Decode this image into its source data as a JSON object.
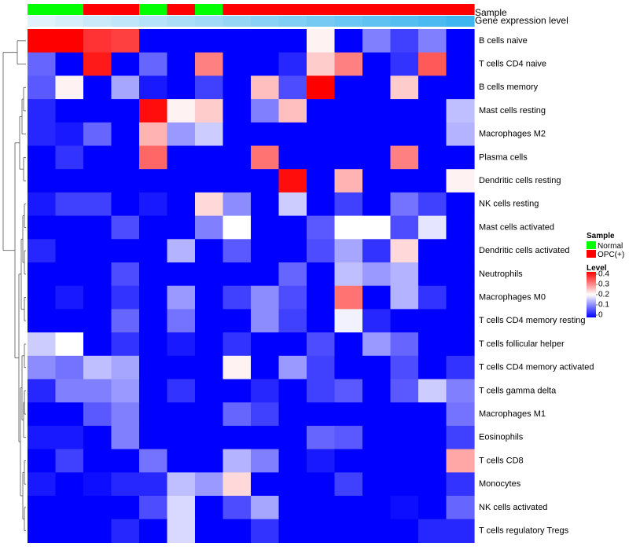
{
  "chart_data": {
    "type": "heatmap",
    "title": "",
    "annotations": [
      {
        "name": "Sample",
        "label": "Sample"
      },
      {
        "name": "Gene expression level",
        "label": "Gene expression level"
      }
    ],
    "rows": [
      "B cells naive",
      "T cells CD4 naive",
      "B cells memory",
      "Mast cells resting",
      "Macrophages M2",
      "Plasma cells",
      "Dendritic cells resting",
      "NK cells resting",
      "Mast cells activated",
      "Dendritic cells activated",
      "Neutrophils",
      "Macrophages M0",
      "T cells CD4 memory resting",
      "T cells follicular helper",
      "T cells CD4 memory activated",
      "T cells gamma delta",
      "Macrophages M1",
      "Eosinophils",
      "T cells CD8",
      "Monocytes",
      "NK cells activated",
      "T cells regulatory  Tregs"
    ],
    "sample_groups": [
      "Normal",
      "Normal",
      "OPC(+)",
      "OPC(+)",
      "Normal",
      "OPC(+)",
      "Normal",
      "OPC(+)",
      "OPC(+)",
      "OPC(+)",
      "OPC(+)",
      "OPC(+)",
      "OPC(+)",
      "OPC(+)",
      "OPC(+)",
      "OPC(+)"
    ],
    "expression_levels": [
      0.02,
      0.04,
      0.06,
      0.08,
      0.1,
      0.12,
      0.14,
      0.16,
      0.18,
      0.2,
      0.22,
      0.24,
      0.26,
      0.28,
      0.3,
      0.32
    ],
    "values": [
      [
        0.4,
        0.4,
        0.36,
        0.35,
        0.0,
        0.0,
        0.0,
        0.0,
        0.0,
        0.0,
        0.21,
        0.0,
        0.1,
        0.05,
        0.1,
        0.0
      ],
      [
        0.08,
        0.0,
        0.38,
        0.0,
        0.08,
        0.0,
        0.3,
        0.0,
        0.0,
        0.03,
        0.24,
        0.3,
        0.0,
        0.04,
        0.33,
        0.0
      ],
      [
        0.07,
        0.21,
        0.0,
        0.13,
        0.02,
        0.0,
        0.05,
        0.0,
        0.25,
        0.06,
        0.4,
        0.0,
        0.0,
        0.24,
        0.0,
        0.0
      ],
      [
        0.03,
        0.0,
        0.0,
        0.0,
        0.39,
        0.21,
        0.24,
        0.0,
        0.1,
        0.25,
        0.0,
        0.0,
        0.0,
        0.0,
        0.0,
        0.15
      ],
      [
        0.03,
        0.02,
        0.08,
        0.0,
        0.26,
        0.12,
        0.16,
        0.0,
        0.0,
        0.0,
        0.0,
        0.0,
        0.0,
        0.0,
        0.0,
        0.14
      ],
      [
        0.0,
        0.04,
        0.0,
        0.0,
        0.32,
        0.0,
        0.0,
        0.0,
        0.31,
        0.0,
        0.0,
        0.0,
        0.0,
        0.3,
        0.0,
        0.0
      ],
      [
        0.0,
        0.0,
        0.0,
        0.0,
        0.0,
        0.0,
        0.0,
        0.0,
        0.0,
        0.39,
        0.0,
        0.26,
        0.0,
        0.0,
        0.0,
        0.21
      ],
      [
        0.02,
        0.05,
        0.05,
        0.0,
        0.02,
        0.0,
        0.23,
        0.11,
        0.0,
        0.16,
        0.0,
        0.05,
        0.0,
        0.09,
        0.05,
        0.0
      ],
      [
        0.0,
        0.0,
        0.0,
        0.06,
        0.0,
        0.0,
        0.1,
        0.2,
        0.0,
        0.0,
        0.07,
        0.2,
        0.2,
        0.06,
        0.18,
        0.0
      ],
      [
        0.03,
        0.0,
        0.0,
        0.0,
        0.0,
        0.14,
        0.0,
        0.07,
        0.0,
        0.0,
        0.06,
        0.13,
        0.04,
        0.23,
        0.0,
        0.0
      ],
      [
        0.0,
        0.0,
        0.0,
        0.06,
        0.0,
        0.0,
        0.0,
        0.0,
        0.0,
        0.08,
        0.0,
        0.15,
        0.12,
        0.14,
        0.0,
        0.0
      ],
      [
        0.0,
        0.02,
        0.0,
        0.04,
        0.0,
        0.12,
        0.0,
        0.05,
        0.11,
        0.06,
        0.0,
        0.31,
        0.0,
        0.14,
        0.04,
        0.0
      ],
      [
        0.0,
        0.0,
        0.0,
        0.08,
        0.0,
        0.09,
        0.0,
        0.0,
        0.11,
        0.05,
        0.0,
        0.19,
        0.03,
        0.0,
        0.0,
        0.0
      ],
      [
        0.16,
        0.2,
        0.0,
        0.04,
        0.0,
        0.02,
        0.0,
        0.04,
        0.0,
        0.0,
        0.06,
        0.0,
        0.12,
        0.08,
        0.0,
        0.0
      ],
      [
        0.11,
        0.09,
        0.15,
        0.13,
        0.0,
        0.0,
        0.0,
        0.21,
        0.0,
        0.12,
        0.05,
        0.0,
        0.0,
        0.06,
        0.0,
        0.04
      ],
      [
        0.03,
        0.1,
        0.1,
        0.12,
        0.0,
        0.04,
        0.0,
        0.0,
        0.03,
        0.0,
        0.05,
        0.07,
        0.0,
        0.07,
        0.16,
        0.1
      ],
      [
        0.0,
        0.0,
        0.07,
        0.1,
        0.0,
        0.0,
        0.0,
        0.08,
        0.05,
        0.0,
        0.0,
        0.0,
        0.0,
        0.0,
        0.0,
        0.09
      ],
      [
        0.02,
        0.02,
        0.0,
        0.1,
        0.0,
        0.0,
        0.0,
        0.0,
        0.0,
        0.0,
        0.08,
        0.07,
        0.0,
        0.0,
        0.0,
        0.05
      ],
      [
        0.0,
        0.05,
        0.0,
        0.0,
        0.09,
        0.0,
        0.0,
        0.14,
        0.1,
        0.0,
        0.02,
        0.0,
        0.0,
        0.0,
        0.0,
        0.27
      ],
      [
        0.02,
        0.0,
        0.01,
        0.03,
        0.03,
        0.15,
        0.12,
        0.23,
        0.0,
        0.0,
        0.0,
        0.05,
        0.0,
        0.0,
        0.0,
        0.04
      ],
      [
        0.0,
        0.0,
        0.0,
        0.0,
        0.06,
        0.17,
        0.0,
        0.06,
        0.13,
        0.0,
        0.0,
        0.0,
        0.0,
        0.01,
        0.0,
        0.08
      ],
      [
        0.0,
        0.0,
        0.0,
        0.03,
        0.0,
        0.17,
        0.0,
        0.0,
        0.04,
        0.0,
        0.0,
        0.0,
        0.0,
        0.0,
        0.03,
        0.03
      ]
    ],
    "zlim": [
      0,
      0.4
    ],
    "colors": {
      "low": "#0000ff",
      "mid": "#ffffff",
      "high": "#ff0000",
      "normal": "#00ff00",
      "opc": "#ff0000",
      "expr_low": "#e0f2fb",
      "expr_high": "#3fb6ef"
    },
    "legend": {
      "placement": "right",
      "sample": {
        "title": "Sample",
        "entries": [
          {
            "label": "Normal",
            "color": "#00ff00"
          },
          {
            "label": "OPC(+)",
            "color": "#ff0000"
          }
        ]
      },
      "level": {
        "title": "Level",
        "ticks": [
          "0.4",
          "0.3",
          "0.2",
          "0.1",
          "0"
        ]
      }
    },
    "dendrogram": "rows"
  }
}
